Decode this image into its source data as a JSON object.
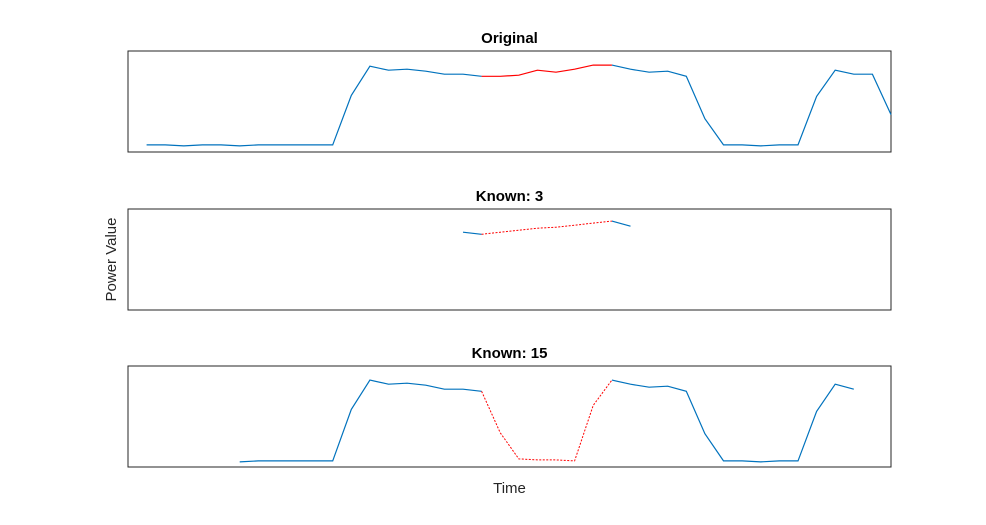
{
  "chart_data": [
    {
      "type": "line",
      "title": "Original",
      "x": [
        0,
        1,
        2,
        3,
        4,
        5,
        6,
        7,
        8,
        9,
        10,
        11,
        12,
        13,
        14,
        15,
        16,
        17,
        18,
        19,
        20,
        21,
        22,
        23,
        24,
        25,
        26,
        27,
        28,
        29,
        30,
        31,
        32,
        33,
        34,
        35,
        36,
        37,
        38,
        39,
        40
      ],
      "xlim": [
        -1,
        40
      ],
      "ylim": [
        0,
        1
      ],
      "series": [
        {
          "color": "#0072bd",
          "values": [
            0.07,
            0.07,
            0.06,
            0.07,
            0.07,
            0.06,
            0.07,
            0.07,
            0.07,
            0.07,
            0.07,
            0.56,
            0.85,
            0.81,
            0.82,
            0.8,
            0.77,
            0.77,
            0.75,
            null,
            null,
            null,
            null,
            null,
            null,
            0.86,
            0.82,
            0.79,
            0.8,
            0.75,
            0.33,
            0.07,
            0.07,
            0.06,
            0.07,
            0.07,
            0.55,
            0.81,
            0.77,
            0.77,
            0.37
          ]
        },
        {
          "color": "#ff0000",
          "values": [
            null,
            null,
            null,
            null,
            null,
            null,
            null,
            null,
            null,
            null,
            null,
            null,
            null,
            null,
            null,
            null,
            null,
            null,
            0.75,
            0.75,
            0.76,
            0.81,
            0.79,
            0.82,
            0.86,
            0.86,
            null,
            null,
            null,
            null,
            null,
            null,
            null,
            null,
            null,
            null,
            null,
            null,
            null,
            null,
            null
          ]
        }
      ]
    },
    {
      "type": "line",
      "title": "Known: 3",
      "ylabel": "Power Value",
      "x": [
        0,
        1,
        2,
        3,
        4,
        5,
        6,
        7,
        8,
        9,
        10,
        11,
        12,
        13,
        14,
        15,
        16,
        17,
        18,
        19,
        20,
        21,
        22,
        23,
        24,
        25,
        26,
        27,
        28,
        29,
        30,
        31,
        32,
        33,
        34,
        35,
        36,
        37,
        38,
        39,
        40
      ],
      "xlim": [
        -1,
        40
      ],
      "ylim": [
        0,
        1
      ],
      "series": [
        {
          "color": "#0072bd",
          "values": [
            null,
            null,
            null,
            null,
            null,
            null,
            null,
            null,
            null,
            null,
            null,
            null,
            null,
            null,
            null,
            null,
            null,
            0.77,
            0.75,
            null,
            null,
            null,
            null,
            null,
            null,
            0.88,
            0.83,
            null,
            null,
            null,
            null,
            null,
            null,
            null,
            null,
            null,
            null,
            null,
            null,
            null,
            null
          ]
        },
        {
          "color": "#ff0000",
          "dashed": true,
          "values": [
            null,
            null,
            null,
            null,
            null,
            null,
            null,
            null,
            null,
            null,
            null,
            null,
            null,
            null,
            null,
            null,
            null,
            null,
            0.75,
            0.77,
            0.79,
            0.81,
            0.82,
            0.84,
            0.86,
            0.88,
            null,
            null,
            null,
            null,
            null,
            null,
            null,
            null,
            null,
            null,
            null,
            null,
            null,
            null,
            null
          ]
        }
      ]
    },
    {
      "type": "line",
      "title": "Known: 15",
      "xlabel": "Time",
      "x": [
        0,
        1,
        2,
        3,
        4,
        5,
        6,
        7,
        8,
        9,
        10,
        11,
        12,
        13,
        14,
        15,
        16,
        17,
        18,
        19,
        20,
        21,
        22,
        23,
        24,
        25,
        26,
        27,
        28,
        29,
        30,
        31,
        32,
        33,
        34,
        35,
        36,
        37,
        38,
        39,
        40
      ],
      "xlim": [
        -1,
        40
      ],
      "ylim": [
        0,
        1
      ],
      "series": [
        {
          "color": "#0072bd",
          "values": [
            null,
            null,
            null,
            null,
            null,
            0.05,
            0.06,
            0.06,
            0.06,
            0.06,
            0.06,
            0.57,
            0.86,
            0.82,
            0.83,
            0.81,
            0.77,
            0.77,
            0.75,
            null,
            null,
            null,
            null,
            null,
            null,
            0.86,
            0.82,
            0.79,
            0.8,
            0.75,
            0.33,
            0.06,
            0.06,
            0.05,
            0.06,
            0.06,
            0.55,
            0.82,
            0.77,
            null,
            null
          ]
        },
        {
          "color": "#ff0000",
          "dashed": true,
          "values": [
            null,
            null,
            null,
            null,
            null,
            null,
            null,
            null,
            null,
            null,
            null,
            null,
            null,
            null,
            null,
            null,
            null,
            null,
            0.75,
            0.34,
            0.08,
            0.07,
            0.07,
            0.06,
            0.61,
            0.86,
            null,
            null,
            null,
            null,
            null,
            null,
            null,
            null,
            null,
            null,
            null,
            null,
            null,
            null,
            null
          ]
        }
      ]
    }
  ]
}
